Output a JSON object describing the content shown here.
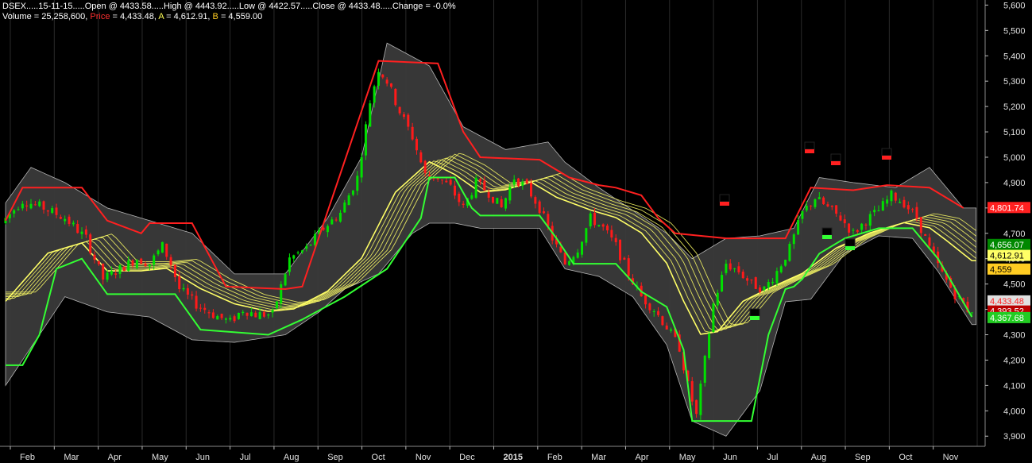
{
  "header": {
    "line1": "DSEX.....15-11-15.....Open @ 4433.58.....High @ 4443.92.....Low @ 4422.57.....Close @ 4433.48.....Change = -0.0%",
    "volume_text": "Volume = 25,258,600, ",
    "price_label": "Price",
    "price_text": " = 4,433.48, ",
    "a_label": "A",
    "a_text": " = 4,612.91, ",
    "b_label": "B",
    "b_text": " = 4,559.00"
  },
  "colors": {
    "background": "#000000",
    "band_fill": "#3a3a3a",
    "band_edge": "#b4b4b4",
    "up_candle": "#00e000",
    "down_candle": "#ff1a1a",
    "upper_channel": "#ff2020",
    "lower_channel": "#33ff33",
    "ema_ribbon": "#ffff66",
    "grid": "#2a2a2a"
  },
  "chart_data": {
    "type": "candlestick",
    "ylim": [
      3860,
      5620
    ],
    "y_ticks": [
      "5,600",
      "5,500",
      "5,400",
      "5,300",
      "5,200",
      "5,100",
      "5,000",
      "4,900",
      "4,800",
      "4,700",
      "4,600",
      "4,500",
      "4,400",
      "4,300",
      "4,200",
      "4,100",
      "4,000",
      "3,900"
    ],
    "x_labels": [
      "Feb",
      "Mar",
      "Apr",
      "May",
      "Jun",
      "Jul",
      "Aug",
      "Sep",
      "Oct",
      "Nov",
      "Dec",
      "2015",
      "Feb",
      "Mar",
      "Apr",
      "May",
      "Jun",
      "Jul",
      "Aug",
      "Sep",
      "Oct",
      "Nov"
    ],
    "price_anchors": [
      [
        0,
        4740
      ],
      [
        5,
        4830
      ],
      [
        10,
        4800
      ],
      [
        15,
        4760
      ],
      [
        20,
        4680
      ],
      [
        24,
        4520
      ],
      [
        28,
        4560
      ],
      [
        32,
        4600
      ],
      [
        35,
        4580
      ],
      [
        38,
        4650
      ],
      [
        40,
        4580
      ],
      [
        42,
        4480
      ],
      [
        46,
        4420
      ],
      [
        50,
        4380
      ],
      [
        54,
        4350
      ],
      [
        57,
        4400
      ],
      [
        60,
        4380
      ],
      [
        64,
        4380
      ],
      [
        68,
        4600
      ],
      [
        72,
        4640
      ],
      [
        76,
        4720
      ],
      [
        80,
        4780
      ],
      [
        84,
        4920
      ],
      [
        87,
        5220
      ],
      [
        89,
        5350
      ],
      [
        91,
        5300
      ],
      [
        94,
        5180
      ],
      [
        97,
        5080
      ],
      [
        100,
        4930
      ],
      [
        103,
        4920
      ],
      [
        106,
        4880
      ],
      [
        109,
        4800
      ],
      [
        112,
        4900
      ],
      [
        115,
        4860
      ],
      [
        118,
        4800
      ],
      [
        121,
        4920
      ],
      [
        124,
        4880
      ],
      [
        127,
        4800
      ],
      [
        130,
        4680
      ],
      [
        133,
        4580
      ],
      [
        136,
        4640
      ],
      [
        139,
        4760
      ],
      [
        142,
        4720
      ],
      [
        145,
        4650
      ],
      [
        148,
        4540
      ],
      [
        151,
        4450
      ],
      [
        154,
        4400
      ],
      [
        157,
        4330
      ],
      [
        160,
        4250
      ],
      [
        162,
        4100
      ],
      [
        164,
        3980
      ],
      [
        166,
        4200
      ],
      [
        168,
        4420
      ],
      [
        171,
        4580
      ],
      [
        174,
        4550
      ],
      [
        177,
        4500
      ],
      [
        180,
        4480
      ],
      [
        183,
        4550
      ],
      [
        186,
        4640
      ],
      [
        189,
        4780
      ],
      [
        192,
        4840
      ],
      [
        195,
        4800
      ],
      [
        198,
        4760
      ],
      [
        201,
        4700
      ],
      [
        204,
        4750
      ],
      [
        207,
        4790
      ],
      [
        210,
        4850
      ],
      [
        213,
        4820
      ],
      [
        216,
        4760
      ],
      [
        219,
        4640
      ],
      [
        222,
        4540
      ],
      [
        225,
        4460
      ],
      [
        228,
        4400
      ]
    ],
    "upper_channel": [
      [
        0,
        4750
      ],
      [
        4,
        4880
      ],
      [
        18,
        4880
      ],
      [
        24,
        4750
      ],
      [
        32,
        4700
      ],
      [
        34,
        4740
      ],
      [
        44,
        4740
      ],
      [
        52,
        4490
      ],
      [
        66,
        4480
      ],
      [
        70,
        4490
      ],
      [
        88,
        5380
      ],
      [
        102,
        5370
      ],
      [
        108,
        5100
      ],
      [
        112,
        5000
      ],
      [
        126,
        4990
      ],
      [
        133,
        4920
      ],
      [
        140,
        4890
      ],
      [
        144,
        4880
      ],
      [
        150,
        4850
      ],
      [
        154,
        4760
      ],
      [
        158,
        4700
      ],
      [
        170,
        4680
      ],
      [
        184,
        4680
      ],
      [
        190,
        4880
      ],
      [
        200,
        4870
      ],
      [
        208,
        4890
      ],
      [
        218,
        4880
      ],
      [
        226,
        4800
      ]
    ],
    "lower_channel": [
      [
        0,
        4180
      ],
      [
        4,
        4180
      ],
      [
        8,
        4300
      ],
      [
        12,
        4560
      ],
      [
        18,
        4600
      ],
      [
        24,
        4460
      ],
      [
        40,
        4460
      ],
      [
        46,
        4320
      ],
      [
        62,
        4300
      ],
      [
        70,
        4360
      ],
      [
        80,
        4450
      ],
      [
        90,
        4560
      ],
      [
        98,
        4760
      ],
      [
        100,
        4920
      ],
      [
        106,
        4920
      ],
      [
        110,
        4800
      ],
      [
        112,
        4770
      ],
      [
        126,
        4770
      ],
      [
        130,
        4680
      ],
      [
        134,
        4580
      ],
      [
        144,
        4580
      ],
      [
        150,
        4470
      ],
      [
        156,
        4410
      ],
      [
        160,
        4240
      ],
      [
        162,
        3960
      ],
      [
        176,
        3960
      ],
      [
        180,
        4300
      ],
      [
        184,
        4480
      ],
      [
        186,
        4490
      ],
      [
        188,
        4520
      ],
      [
        192,
        4620
      ],
      [
        198,
        4680
      ],
      [
        206,
        4720
      ],
      [
        214,
        4720
      ],
      [
        220,
        4600
      ],
      [
        228,
        4370
      ]
    ],
    "band_upper": [
      [
        0,
        4820
      ],
      [
        6,
        4960
      ],
      [
        14,
        4900
      ],
      [
        24,
        4800
      ],
      [
        34,
        4750
      ],
      [
        44,
        4700
      ],
      [
        54,
        4540
      ],
      [
        66,
        4540
      ],
      [
        76,
        4760
      ],
      [
        84,
        5000
      ],
      [
        90,
        5450
      ],
      [
        100,
        5360
      ],
      [
        108,
        5120
      ],
      [
        118,
        5030
      ],
      [
        128,
        5060
      ],
      [
        132,
        4980
      ],
      [
        140,
        4880
      ],
      [
        148,
        4790
      ],
      [
        156,
        4700
      ],
      [
        162,
        4600
      ],
      [
        170,
        4680
      ],
      [
        178,
        4690
      ],
      [
        186,
        4720
      ],
      [
        192,
        4920
      ],
      [
        200,
        4900
      ],
      [
        210,
        4880
      ],
      [
        218,
        4960
      ],
      [
        226,
        4800
      ]
    ],
    "band_lower": [
      [
        0,
        4100
      ],
      [
        6,
        4250
      ],
      [
        14,
        4450
      ],
      [
        24,
        4390
      ],
      [
        34,
        4370
      ],
      [
        44,
        4280
      ],
      [
        54,
        4270
      ],
      [
        66,
        4300
      ],
      [
        74,
        4390
      ],
      [
        80,
        4480
      ],
      [
        88,
        4540
      ],
      [
        96,
        4700
      ],
      [
        100,
        4740
      ],
      [
        106,
        4740
      ],
      [
        112,
        4720
      ],
      [
        126,
        4720
      ],
      [
        132,
        4560
      ],
      [
        140,
        4530
      ],
      [
        148,
        4450
      ],
      [
        156,
        4260
      ],
      [
        162,
        3960
      ],
      [
        170,
        3900
      ],
      [
        178,
        4080
      ],
      [
        184,
        4430
      ],
      [
        190,
        4440
      ],
      [
        198,
        4620
      ],
      [
        206,
        4690
      ],
      [
        214,
        4680
      ],
      [
        220,
        4550
      ],
      [
        228,
        4340
      ]
    ],
    "ema_anchors": [
      [
        0,
        4450
      ],
      [
        10,
        4640
      ],
      [
        18,
        4680
      ],
      [
        24,
        4570
      ],
      [
        32,
        4570
      ],
      [
        38,
        4580
      ],
      [
        46,
        4500
      ],
      [
        54,
        4440
      ],
      [
        62,
        4410
      ],
      [
        68,
        4420
      ],
      [
        76,
        4490
      ],
      [
        84,
        4620
      ],
      [
        92,
        4880
      ],
      [
        100,
        5000
      ],
      [
        106,
        4950
      ],
      [
        112,
        4880
      ],
      [
        118,
        4890
      ],
      [
        124,
        4920
      ],
      [
        130,
        4860
      ],
      [
        138,
        4810
      ],
      [
        144,
        4780
      ],
      [
        150,
        4720
      ],
      [
        156,
        4600
      ],
      [
        160,
        4450
      ],
      [
        164,
        4320
      ],
      [
        168,
        4330
      ],
      [
        174,
        4450
      ],
      [
        180,
        4500
      ],
      [
        188,
        4560
      ],
      [
        196,
        4660
      ],
      [
        204,
        4720
      ],
      [
        212,
        4760
      ],
      [
        218,
        4740
      ],
      [
        222,
        4690
      ],
      [
        228,
        4610
      ]
    ],
    "markers": [
      {
        "x": 912,
        "y": 254,
        "color": "#ff2020"
      },
      {
        "x": 1019,
        "y": 188,
        "color": "#ff2020"
      },
      {
        "x": 1052,
        "y": 203,
        "color": "#ff2020"
      },
      {
        "x": 1116,
        "y": 196,
        "color": "#ff2020"
      },
      {
        "x": 1041,
        "y": 296,
        "color": "#33ff33"
      },
      {
        "x": 1070,
        "y": 310,
        "color": "#33ff33"
      },
      {
        "x": 950,
        "y": 398,
        "color": "#33ff33"
      }
    ],
    "value_tags": [
      {
        "text": "4,801.74",
        "value": 4801.74,
        "bg": "#ff2020",
        "fg": "#ffffff"
      },
      {
        "text": "4,656.07",
        "value": 4656.07,
        "bg": "#008800",
        "fg": "#ffffff"
      },
      {
        "text": "4,612.91",
        "value": 4612.91,
        "bg": "#ffff66",
        "fg": "#000000"
      },
      {
        "text": "4,559",
        "value": 4559,
        "bg": "#ffcc22",
        "fg": "#000000"
      },
      {
        "text": "4,433.48",
        "value": 4433.48,
        "bg": "#e0e0e0",
        "fg": "#ff2020"
      },
      {
        "text": "4,393.52",
        "value": 4393.52,
        "bg": "#bb0000",
        "fg": "#ffffff"
      },
      {
        "text": "4,367.68",
        "value": 4367.68,
        "bg": "#22cc22",
        "fg": "#ffffff"
      }
    ]
  }
}
